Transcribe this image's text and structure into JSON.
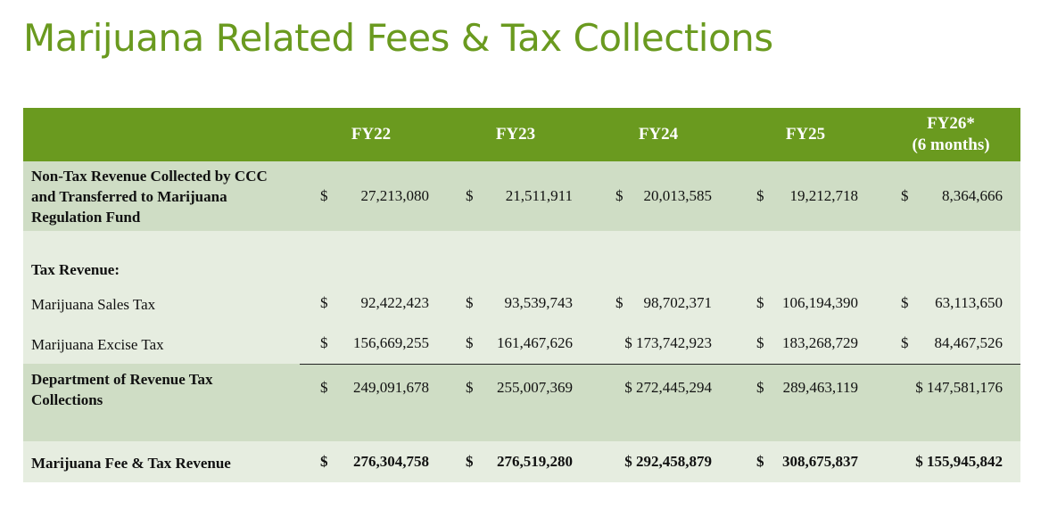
{
  "title": "Marijuana Related Fees & Tax Collections",
  "header": {
    "columns": [
      "FY22",
      "FY23",
      "FY24",
      "FY25"
    ],
    "last_column_line1": "FY26*",
    "last_column_line2": "(6 months)"
  },
  "rows": {
    "nontax": {
      "label_lines": [
        "Non-Tax Revenue Collected by CCC",
        "and Transferred to Marijuana",
        "Regulation Fund"
      ],
      "cells": [
        {
          "dollar": "$",
          "value": "27,213,080"
        },
        {
          "dollar": "$",
          "value": "21,511,911"
        },
        {
          "dollar": "$",
          "value": "20,013,585"
        },
        {
          "dollar": "$",
          "value": "19,212,718"
        },
        {
          "dollar": "$",
          "value": "8,364,666"
        }
      ]
    },
    "tax_header": {
      "label": "Tax Revenue:"
    },
    "sales": {
      "label": "Marijuana Sales Tax",
      "cells": [
        {
          "dollar": "$",
          "value": "92,422,423"
        },
        {
          "dollar": "$",
          "value": "93,539,743"
        },
        {
          "dollar": "$",
          "value": "98,702,371"
        },
        {
          "dollar": "$",
          "value": "106,194,390"
        },
        {
          "dollar": "$",
          "value": "63,113,650"
        }
      ]
    },
    "excise": {
      "label": "Marijuana Excise Tax",
      "cells": [
        {
          "dollar": "$",
          "value": "156,669,255"
        },
        {
          "dollar": "$",
          "value": "161,467,626"
        },
        {
          "dollar": "$",
          "value": "173,742,923"
        },
        {
          "dollar": "$",
          "value": "183,268,729"
        },
        {
          "dollar": "$",
          "value": "84,467,526"
        }
      ]
    },
    "dor": {
      "label_lines": [
        "Department of Revenue Tax",
        "Collections"
      ],
      "cells": [
        {
          "dollar": "$",
          "value": "249,091,678"
        },
        {
          "dollar": "$",
          "value": "255,007,369"
        },
        {
          "dollar": "$",
          "value": "272,445,294"
        },
        {
          "dollar": "$",
          "value": "289,463,119"
        },
        {
          "dollar": "$",
          "value": "147,581,176"
        }
      ]
    },
    "total": {
      "label": "Marijuana Fee & Tax Revenue",
      "cells": [
        {
          "dollar": "$",
          "value": "276,304,758"
        },
        {
          "dollar": "$",
          "value": "276,519,280"
        },
        {
          "dollar": "$",
          "value": "292,458,879"
        },
        {
          "dollar": "$",
          "value": "308,675,837"
        },
        {
          "dollar": "$",
          "value": "155,945,842"
        }
      ]
    }
  },
  "colors": {
    "accent_green": "#6a9a1f",
    "band_dark": "#cfddc5",
    "band_light": "#e6ede0"
  }
}
